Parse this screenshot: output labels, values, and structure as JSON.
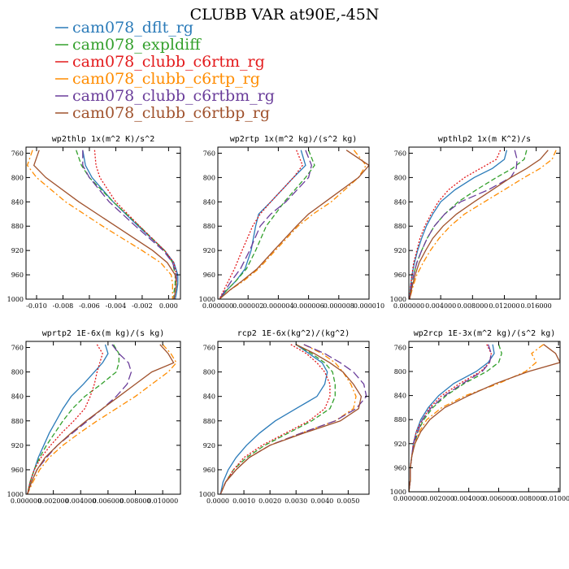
{
  "figure_title": "CLUBB VAR at90E,-45N",
  "chart_data": [
    {
      "type": "line",
      "title": "wp2thlp  1x(m^2 K)/s^2",
      "xlim": [
        -0.0108,
        0.0009
      ],
      "xticks": [
        -0.01,
        -0.008,
        -0.006,
        -0.004,
        -0.002,
        0.0
      ],
      "xticklabels": [
        "-0.010",
        "-0.008",
        "-0.006",
        "-0.004",
        "-0.002",
        "0.000"
      ],
      "ylim": [
        1000,
        750
      ],
      "yticks": [
        760,
        800,
        840,
        880,
        920,
        960,
        1000
      ],
      "yticklabels": [
        "760",
        "800",
        "840",
        "880",
        "920",
        "960",
        "1000"
      ],
      "y": [
        755,
        780,
        800,
        840,
        880,
        920,
        940,
        960,
        975,
        990,
        1000
      ],
      "series": [
        {
          "name": "cam078_dflt_rg",
          "values": [
            -0.0065,
            -0.0063,
            -0.0058,
            -0.0042,
            -0.0023,
            -0.0003,
            0.0004,
            0.0007,
            0.0007,
            0.0006,
            0.0005
          ]
        },
        {
          "name": "cam078_expldiff",
          "values": [
            -0.007,
            -0.0066,
            -0.006,
            -0.0042,
            -0.0022,
            -0.0003,
            0.0003,
            0.0005,
            0.0005,
            0.0004,
            0.0004
          ]
        },
        {
          "name": "cam078_clubb_c6rtm_rg",
          "values": [
            -0.0056,
            -0.0055,
            -0.0052,
            -0.004,
            -0.0022,
            -0.0003,
            0.0004,
            0.0006,
            0.0006,
            0.0005,
            0.0004
          ]
        },
        {
          "name": "cam078_clubb_c6rtp_rg",
          "values": [
            -0.0103,
            -0.0107,
            -0.01,
            -0.0078,
            -0.005,
            -0.002,
            -0.0006,
            0.0002,
            0.0003,
            0.0003,
            0.0003
          ]
        },
        {
          "name": "cam078_clubb_c6rtbm_rg",
          "values": [
            -0.0065,
            -0.0065,
            -0.006,
            -0.0045,
            -0.0025,
            -0.0004,
            0.0003,
            0.0006,
            0.0006,
            0.0005,
            0.0004
          ]
        },
        {
          "name": "cam078_clubb_c6rtbp_rg",
          "values": [
            -0.0098,
            -0.0102,
            -0.0093,
            -0.0068,
            -0.004,
            -0.0012,
            -0.0001,
            0.0005,
            0.0006,
            0.0005,
            0.0004
          ]
        }
      ]
    },
    {
      "type": "line",
      "title": "wp2rtp  1x(m^2 kg)/(s^2 kg)",
      "xlim": [
        0,
        1e-05
      ],
      "xticks": [
        0,
        2e-06,
        4e-06,
        6e-06,
        8e-06,
        1e-05
      ],
      "xticklabels": [
        "0.000000",
        "0.000002",
        "0.000004",
        "0.000006",
        "0.000008",
        "0.000010"
      ],
      "ylim": [
        1000,
        750
      ],
      "yticks": [
        760,
        800,
        840,
        880,
        920,
        960,
        1000
      ],
      "yticklabels": [
        "760",
        "800",
        "840",
        "880",
        "920",
        "960",
        "1000"
      ],
      "y": [
        755,
        780,
        800,
        840,
        860,
        880,
        920,
        950,
        970,
        985,
        1000
      ],
      "series": [
        {
          "name": "cam078_dflt_rg",
          "values": [
            5.5e-06,
            5.8e-06,
            5e-06,
            3.5e-06,
            2.7e-06,
            2.5e-06,
            2.2e-06,
            1.8e-06,
            1.2e-06,
            6e-07,
            1e-07
          ]
        },
        {
          "name": "cam078_expldiff",
          "values": [
            6e-06,
            6.4e-06,
            5.8e-06,
            4.4e-06,
            3.8e-06,
            3.2e-06,
            2.5e-06,
            1.9e-06,
            1.2e-06,
            6e-07,
            1e-07
          ]
        },
        {
          "name": "cam078_clubb_c6rtm_rg",
          "values": [
            5.2e-06,
            5.6e-06,
            5e-06,
            3.5e-06,
            2.8e-06,
            2.3e-06,
            1.6e-06,
            1.1e-06,
            7e-07,
            4e-07,
            1e-07
          ]
        },
        {
          "name": "cam078_clubb_c6rtp_rg",
          "values": [
            9e-06,
            9.8e-06,
            9.3e-06,
            7.5e-06,
            6.3e-06,
            5.3e-06,
            3.8e-06,
            2.7e-06,
            1.7e-06,
            8e-07,
            1e-07
          ]
        },
        {
          "name": "cam078_clubb_c6rtbm_rg",
          "values": [
            5.8e-06,
            6.2e-06,
            6e-06,
            4.5e-06,
            3.5e-06,
            2.8e-06,
            2.1e-06,
            1.5e-06,
            9e-07,
            5e-07,
            1e-07
          ]
        },
        {
          "name": "cam078_clubb_c6rtbp_rg",
          "values": [
            8.5e-06,
            1e-05,
            9.3e-06,
            7.1e-06,
            6e-06,
            5.2e-06,
            3.7e-06,
            2.6e-06,
            1.6e-06,
            8e-07,
            1e-07
          ]
        }
      ]
    },
    {
      "type": "line",
      "title": "wpthlp2  1x(m K^2)/s",
      "xlim": [
        0,
        0.019
      ],
      "xticks": [
        0,
        0.004,
        0.008,
        0.012,
        0.016
      ],
      "xticklabels": [
        "0.000000",
        "0.004000",
        "0.008000",
        "0.012000",
        "0.016000"
      ],
      "ylim": [
        1000,
        750
      ],
      "yticks": [
        760,
        800,
        840,
        880,
        920,
        960,
        1000
      ],
      "yticklabels": [
        "760",
        "800",
        "840",
        "880",
        "920",
        "960",
        "1000"
      ],
      "y": [
        755,
        770,
        785,
        800,
        820,
        840,
        860,
        880,
        900,
        920,
        940,
        960,
        980,
        1000
      ],
      "series": [
        {
          "name": "cam078_dflt_rg",
          "values": [
            0.0123,
            0.012,
            0.0105,
            0.0082,
            0.0058,
            0.004,
            0.003,
            0.0022,
            0.0016,
            0.0011,
            0.0007,
            0.0004,
            0.0002,
            0.0001
          ]
        },
        {
          "name": "cam078_expldiff",
          "values": [
            0.0148,
            0.0145,
            0.013,
            0.011,
            0.0085,
            0.0062,
            0.0045,
            0.0032,
            0.0023,
            0.0016,
            0.001,
            0.0006,
            0.0003,
            0.0001
          ]
        },
        {
          "name": "cam078_clubb_c6rtm_rg",
          "values": [
            0.0115,
            0.011,
            0.009,
            0.007,
            0.005,
            0.0037,
            0.0028,
            0.002,
            0.0014,
            0.001,
            0.0006,
            0.0004,
            0.0002,
            0.0001
          ]
        },
        {
          "name": "cam078_clubb_c6rtp_rg",
          "values": [
            0.0185,
            0.018,
            0.0165,
            0.0145,
            0.012,
            0.0095,
            0.007,
            0.0052,
            0.0038,
            0.0027,
            0.0018,
            0.001,
            0.0005,
            0.0001
          ]
        },
        {
          "name": "cam078_clubb_c6rtbm_rg",
          "values": [
            0.0133,
            0.0136,
            0.0135,
            0.0128,
            0.01,
            0.0065,
            0.0045,
            0.0032,
            0.0023,
            0.0016,
            0.001,
            0.0006,
            0.0003,
            0.0001
          ]
        },
        {
          "name": "cam078_clubb_c6rtbp_rg",
          "values": [
            0.0175,
            0.0165,
            0.0148,
            0.0128,
            0.0105,
            0.0082,
            0.006,
            0.0043,
            0.003,
            0.0021,
            0.0013,
            0.0008,
            0.0004,
            0.0001
          ]
        }
      ]
    },
    {
      "type": "line",
      "title": "wprtp2  1E-6x(m kg)/(s kg)",
      "xlim": [
        0,
        0.0113
      ],
      "xticks": [
        0,
        0.002,
        0.004,
        0.006,
        0.008,
        0.01
      ],
      "xticklabels": [
        "0.000000",
        "0.002000",
        "0.004000",
        "0.006000",
        "0.008000",
        "0.010000"
      ],
      "ylim": [
        1000,
        750
      ],
      "yticks": [
        760,
        800,
        840,
        880,
        920,
        960,
        1000
      ],
      "yticklabels": [
        "760",
        "800",
        "840",
        "880",
        "920",
        "960",
        "1000"
      ],
      "y": [
        755,
        770,
        785,
        800,
        820,
        840,
        860,
        880,
        900,
        920,
        940,
        960,
        980,
        1000
      ],
      "series": [
        {
          "name": "cam078_dflt_rg",
          "values": [
            0.0058,
            0.006,
            0.0056,
            0.005,
            0.0042,
            0.0033,
            0.0027,
            0.0022,
            0.0017,
            0.0013,
            0.0009,
            0.0006,
            0.0003,
            0.0001
          ]
        },
        {
          "name": "cam078_expldiff",
          "values": [
            0.0064,
            0.0068,
            0.0068,
            0.0066,
            0.0055,
            0.0043,
            0.0034,
            0.0027,
            0.0021,
            0.0015,
            0.001,
            0.0006,
            0.0003,
            0.0001
          ]
        },
        {
          "name": "cam078_clubb_c6rtm_rg",
          "values": [
            0.0052,
            0.0056,
            0.0054,
            0.0052,
            0.005,
            0.0047,
            0.0043,
            0.0035,
            0.0026,
            0.0018,
            0.0011,
            0.0006,
            0.0003,
            0.0001
          ]
        },
        {
          "name": "cam078_clubb_c6rtp_rg",
          "values": [
            0.01,
            0.0106,
            0.011,
            0.0104,
            0.0092,
            0.008,
            0.0066,
            0.0052,
            0.0039,
            0.0027,
            0.0017,
            0.001,
            0.0005,
            0.0001
          ]
        },
        {
          "name": "cam078_clubb_c6rtbm_rg",
          "values": [
            0.0063,
            0.0068,
            0.0075,
            0.0077,
            0.0074,
            0.0066,
            0.0056,
            0.0045,
            0.0034,
            0.0023,
            0.0015,
            0.0008,
            0.0004,
            0.0001
          ]
        },
        {
          "name": "cam078_clubb_c6rtbp_rg",
          "values": [
            0.0098,
            0.0104,
            0.0108,
            0.0092,
            0.008,
            0.0068,
            0.0056,
            0.0044,
            0.0033,
            0.0023,
            0.0014,
            0.0008,
            0.0004,
            0.0001
          ]
        }
      ]
    },
    {
      "type": "line",
      "title": "rcp2  1E-6x(kg^2)/(kg^2)",
      "xlim": [
        0,
        0.0058
      ],
      "xticks": [
        0,
        0.001,
        0.002,
        0.003,
        0.004,
        0.005
      ],
      "xticklabels": [
        "0.0000",
        "0.0010",
        "0.0020",
        "0.0030",
        "0.0040",
        "0.0050"
      ],
      "ylim": [
        1000,
        750
      ],
      "yticks": [
        760,
        800,
        840,
        880,
        920,
        960,
        1000
      ],
      "yticklabels": [
        "760",
        "800",
        "840",
        "880",
        "920",
        "960",
        "1000"
      ],
      "y": [
        755,
        770,
        785,
        800,
        820,
        840,
        860,
        880,
        900,
        920,
        940,
        960,
        980,
        1000
      ],
      "series": [
        {
          "name": "cam078_dflt_rg",
          "values": [
            0.003,
            0.0035,
            0.004,
            0.0042,
            0.0041,
            0.0038,
            0.003,
            0.0022,
            0.0016,
            0.0011,
            0.0007,
            0.0004,
            0.0002,
            0.0001
          ]
        },
        {
          "name": "cam078_expldiff",
          "values": [
            0.003,
            0.0036,
            0.0041,
            0.0044,
            0.0045,
            0.0045,
            0.0043,
            0.0036,
            0.0027,
            0.0018,
            0.0011,
            0.0006,
            0.0003,
            0.0001
          ]
        },
        {
          "name": "cam078_clubb_c6rtm_rg",
          "values": [
            0.0028,
            0.0034,
            0.0038,
            0.0041,
            0.0043,
            0.0043,
            0.0041,
            0.0035,
            0.0026,
            0.0017,
            0.001,
            0.0006,
            0.0003,
            0.0001
          ]
        },
        {
          "name": "cam078_clubb_c6rtp_rg",
          "values": [
            0.0033,
            0.004,
            0.0045,
            0.0048,
            0.0051,
            0.0053,
            0.0052,
            0.0045,
            0.0032,
            0.002,
            0.0012,
            0.0007,
            0.0003,
            0.0001
          ]
        },
        {
          "name": "cam078_clubb_c6rtbm_rg",
          "values": [
            0.0033,
            0.0041,
            0.0047,
            0.0052,
            0.0056,
            0.0057,
            0.0053,
            0.0045,
            0.0032,
            0.002,
            0.0012,
            0.0007,
            0.0003,
            0.0001
          ]
        },
        {
          "name": "cam078_clubb_c6rtbp_rg",
          "values": [
            0.003,
            0.0037,
            0.0043,
            0.0048,
            0.0052,
            0.0055,
            0.0054,
            0.0047,
            0.0033,
            0.002,
            0.0012,
            0.0007,
            0.0003,
            0.0001
          ]
        }
      ]
    },
    {
      "type": "line",
      "title": "wp2rcp  1E-3x(m^2 kg)/(s^2 kg)",
      "xlim": [
        0,
        0.0101
      ],
      "xticks": [
        0,
        0.002,
        0.004,
        0.006,
        0.008,
        0.01
      ],
      "xticklabels": [
        "0.000000",
        "0.002000",
        "0.004000",
        "0.006000",
        "0.008000",
        "0.010000"
      ],
      "ylim": [
        1000,
        750
      ],
      "yticks": [
        760,
        800,
        840,
        880,
        920,
        960,
        1000
      ],
      "yticklabels": [
        "760",
        "800",
        "840",
        "880",
        "920",
        "960",
        "1000"
      ],
      "y": [
        755,
        770,
        785,
        800,
        820,
        840,
        860,
        880,
        900,
        920,
        940,
        960,
        980,
        1000
      ],
      "series": [
        {
          "name": "cam078_dflt_rg",
          "values": [
            0.0056,
            0.0057,
            0.0053,
            0.0045,
            0.003,
            0.002,
            0.0013,
            0.0008,
            0.0005,
            0.0003,
            0.0002,
            0.0001,
            0.0001,
            0.0
          ]
        },
        {
          "name": "cam078_expldiff",
          "values": [
            0.006,
            0.0062,
            0.006,
            0.0052,
            0.0037,
            0.0025,
            0.0016,
            0.001,
            0.0006,
            0.0004,
            0.0002,
            0.0001,
            0.0001,
            0.0
          ]
        },
        {
          "name": "cam078_clubb_c6rtm_rg",
          "values": [
            0.0052,
            0.0055,
            0.0054,
            0.0048,
            0.0034,
            0.0022,
            0.0014,
            0.0009,
            0.0005,
            0.0003,
            0.0002,
            0.0001,
            0.0001,
            0.0
          ]
        },
        {
          "name": "cam078_clubb_c6rtp_rg",
          "values": [
            0.009,
            0.0082,
            0.0085,
            0.0078,
            0.006,
            0.0038,
            0.0022,
            0.0012,
            0.0007,
            0.0004,
            0.0002,
            0.0001,
            0.0001,
            0.0
          ]
        },
        {
          "name": "cam078_clubb_c6rtbm_rg",
          "values": [
            0.0053,
            0.0055,
            0.0054,
            0.0049,
            0.0036,
            0.0024,
            0.0015,
            0.0009,
            0.0006,
            0.0003,
            0.0002,
            0.0001,
            0.0001,
            0.0
          ]
        },
        {
          "name": "cam078_clubb_c6rtbp_rg",
          "values": [
            0.009,
            0.0098,
            0.0101,
            0.008,
            0.0058,
            0.004,
            0.0024,
            0.0014,
            0.0008,
            0.0004,
            0.0002,
            0.0001,
            0.0001,
            0.0
          ]
        }
      ]
    }
  ],
  "legend": [
    {
      "name": "cam078_dflt_rg",
      "color": "#2b7bb9",
      "dash": "solid"
    },
    {
      "name": "cam078_expldiff",
      "color": "#33a02c",
      "dash": "dash"
    },
    {
      "name": "cam078_clubb_c6rtm_rg",
      "color": "#e31a1c",
      "dash": "dot"
    },
    {
      "name": "cam078_clubb_c6rtp_rg",
      "color": "#ff8c00",
      "dash": "dashdot"
    },
    {
      "name": "cam078_clubb_c6rtbm_rg",
      "color": "#6a3d9a",
      "dash": "longdash"
    },
    {
      "name": "cam078_clubb_c6rtbp_rg",
      "color": "#a0522d",
      "dash": "solid"
    }
  ]
}
